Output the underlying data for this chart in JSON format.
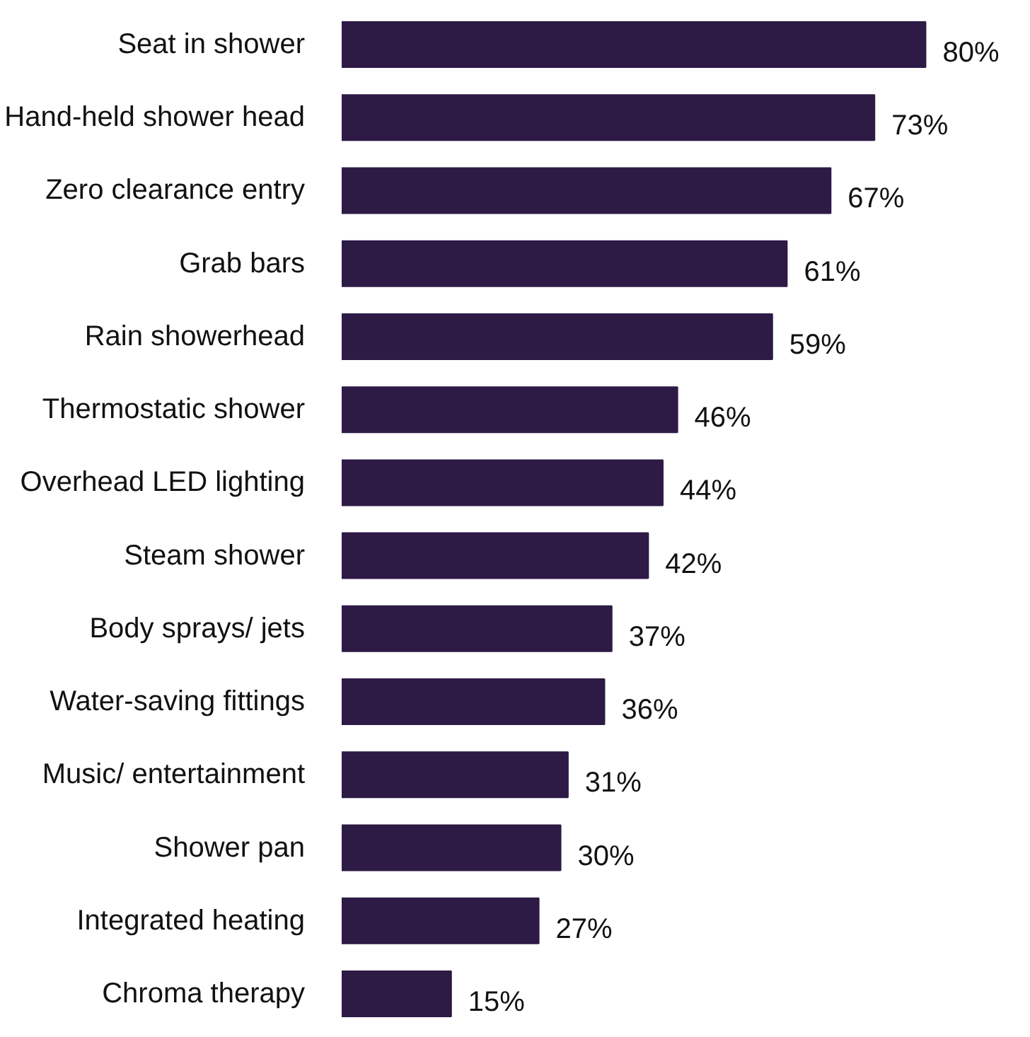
{
  "chart_data": {
    "type": "bar",
    "orientation": "horizontal",
    "tick_labels": "y",
    "categories": [
      "Seat in shower",
      "Hand-held shower head",
      "Zero clearance entry",
      "Grab bars",
      "Rain showerhead",
      "Thermostatic shower",
      "Overhead LED lighting",
      "Steam shower",
      "Body sprays/ jets",
      "Water-saving fittings",
      "Music/ entertainment",
      "Shower pan",
      "Integrated heating",
      "Chroma therapy"
    ],
    "values": [
      80,
      73,
      67,
      61,
      59,
      46,
      44,
      42,
      37,
      36,
      31,
      30,
      27,
      15
    ],
    "value_labels": [
      "80%",
      "73%",
      "67%",
      "61%",
      "59%",
      "46%",
      "44%",
      "42%",
      "37%",
      "36%",
      "31%",
      "30%",
      "27%",
      "15%"
    ],
    "color": "#2d1a45"
  }
}
